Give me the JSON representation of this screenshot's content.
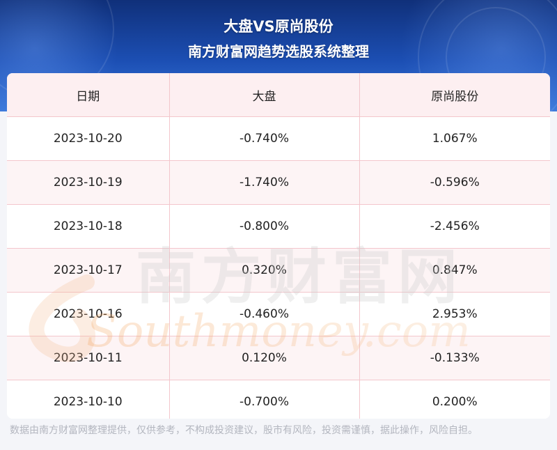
{
  "header": {
    "title": "大盘VS原尚股份",
    "subtitle": "南方财富网趋势选股系统整理"
  },
  "table": {
    "columns": [
      "日期",
      "大盘",
      "原尚股份"
    ],
    "rows": [
      [
        "2023-10-20",
        "-0.740%",
        "1.067%"
      ],
      [
        "2023-10-19",
        "-1.740%",
        "-0.596%"
      ],
      [
        "2023-10-18",
        "-0.800%",
        "-2.456%"
      ],
      [
        "2023-10-17",
        "0.320%",
        "0.847%"
      ],
      [
        "2023-10-16",
        "-0.460%",
        "2.953%"
      ],
      [
        "2023-10-11",
        "0.120%",
        "-0.133%"
      ],
      [
        "2023-10-10",
        "-0.700%",
        "0.200%"
      ]
    ]
  },
  "watermark": {
    "cn": "南方财富网",
    "en": "Southmoney.com"
  },
  "footer": {
    "disclaimer": "数据由南方财富网整理提供，仅供参考，不构成投资建议，股市有风险，投资需谨慎，据此操作，风险自担。"
  },
  "colors": {
    "banner_top": "#10307a",
    "banner_bottom": "#3b78da",
    "grid_line": "#f3c6cc",
    "header_row_bg": "#fdeff1"
  }
}
